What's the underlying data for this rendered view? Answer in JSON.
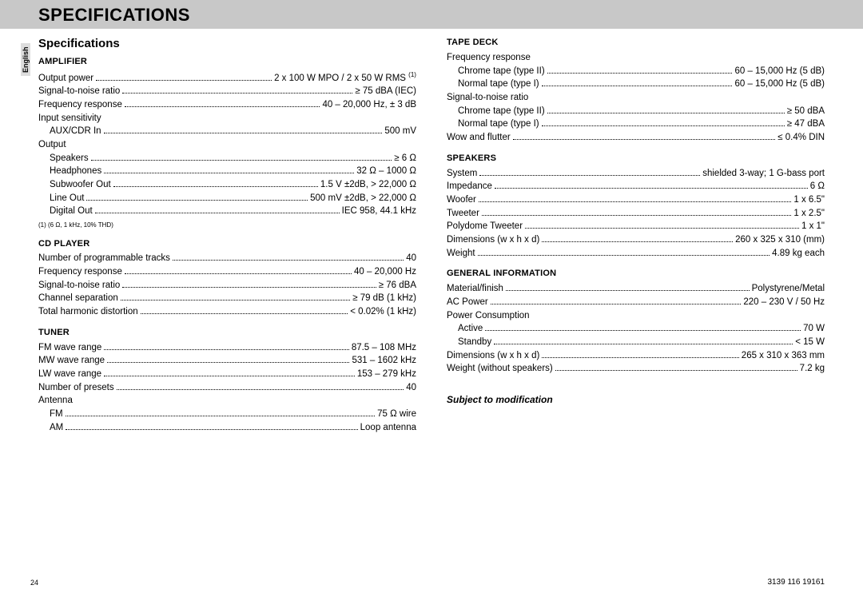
{
  "header": {
    "title": "SPECIFICATIONS",
    "lang_tab": "English"
  },
  "subtitle": "Specifications",
  "left": {
    "amplifier": {
      "head": "AMPLIFIER",
      "rows": [
        {
          "label": "Output power",
          "value": "2 x 100 W MPO / 2 x 50 W RMS ",
          "sup": "(1)"
        },
        {
          "label": "Signal-to-noise ratio",
          "value": "≥ 75 dBA (IEC)"
        },
        {
          "label": "Frequency response",
          "value": "40 – 20,000 Hz, ± 3 dB"
        },
        {
          "plain": "Input sensitivity"
        },
        {
          "label": "AUX/CDR In",
          "value": "500 mV",
          "indent": true
        },
        {
          "plain": "Output"
        },
        {
          "label": "Speakers",
          "value": "≥ 6 Ω",
          "indent": true
        },
        {
          "label": "Headphones",
          "value": "32 Ω – 1000 Ω",
          "indent": true
        },
        {
          "label": "Subwoofer Out",
          "value": "1.5 V ±2dB, > 22,000 Ω",
          "indent": true
        },
        {
          "label": "Line Out",
          "value": "500 mV ±2dB, > 22,000 Ω",
          "indent": true
        },
        {
          "label": "Digital Out",
          "value": "IEC 958, 44.1 kHz",
          "indent": true
        }
      ],
      "footnote": "(1) (6 Ω, 1 kHz, 10% THD)"
    },
    "cd": {
      "head": "CD PLAYER",
      "rows": [
        {
          "label": "Number of programmable tracks",
          "value": "40"
        },
        {
          "label": "Frequency response",
          "value": "40 – 20,000 Hz"
        },
        {
          "label": "Signal-to-noise ratio",
          "value": "≥ 76 dBA"
        },
        {
          "label": "Channel separation",
          "value": "≥ 79 dB (1 kHz)"
        },
        {
          "label": "Total harmonic distortion",
          "value": "< 0.02% (1 kHz)"
        }
      ]
    },
    "tuner": {
      "head": "TUNER",
      "rows": [
        {
          "label": "FM wave range",
          "value": "87.5 – 108 MHz"
        },
        {
          "label": "MW wave range",
          "value": "531 – 1602 kHz"
        },
        {
          "label": "LW wave range",
          "value": "153 – 279 kHz"
        },
        {
          "label": "Number of presets",
          "value": "40"
        },
        {
          "plain": "Antenna"
        },
        {
          "label": "FM",
          "value": "75 Ω wire",
          "indent": true
        },
        {
          "label": "AM",
          "value": "Loop antenna",
          "indent": true
        }
      ]
    }
  },
  "right": {
    "tape": {
      "head": "TAPE DECK",
      "rows": [
        {
          "plain": "Frequency response"
        },
        {
          "label": "Chrome tape (type II)",
          "value": "60 – 15,000 Hz (5 dB)",
          "indent": true
        },
        {
          "label": "Normal tape (type I)",
          "value": "60 – 15,000 Hz (5 dB)",
          "indent": true
        },
        {
          "plain": "Signal-to-noise ratio"
        },
        {
          "label": "Chrome tape (type II)",
          "value": "≥ 50 dBA",
          "indent": true
        },
        {
          "label": "Normal tape (type I)",
          "value": "≥ 47 dBA",
          "indent": true
        },
        {
          "label": "Wow and flutter",
          "value": "≤ 0.4% DIN"
        }
      ]
    },
    "speakers": {
      "head": "SPEAKERS",
      "rows": [
        {
          "label": "System",
          "value": "shielded 3-way; 1 G-bass port"
        },
        {
          "label": "Impedance",
          "value": "6 Ω"
        },
        {
          "label": "Woofer",
          "value": "1 x 6.5\""
        },
        {
          "label": "Tweeter",
          "value": "1 x 2.5\""
        },
        {
          "label": "Polydome Tweeter",
          "value": "1 x 1\""
        },
        {
          "label": "Dimensions (w x h x d)",
          "value": "260 x 325 x 310 (mm)"
        },
        {
          "label": "Weight",
          "value": "4.89 kg each"
        }
      ]
    },
    "general": {
      "head": "GENERAL INFORMATION",
      "rows": [
        {
          "label": "Material/finish",
          "value": "Polystyrene/Metal"
        },
        {
          "label": "AC Power",
          "value": "220 – 230 V / 50 Hz"
        },
        {
          "plain": "Power Consumption"
        },
        {
          "label": "Active",
          "value": "70 W",
          "indent": true
        },
        {
          "label": "Standby",
          "value": "< 15 W",
          "indent": true
        },
        {
          "label": "Dimensions (w x h x d)",
          "value": "265 x 310 x 363 mm"
        },
        {
          "label": "Weight (without speakers)",
          "value": "7.2 kg"
        }
      ]
    }
  },
  "disclaimer": "Subject to modification",
  "page_number": "24",
  "doc_code": "3139 116 19161"
}
